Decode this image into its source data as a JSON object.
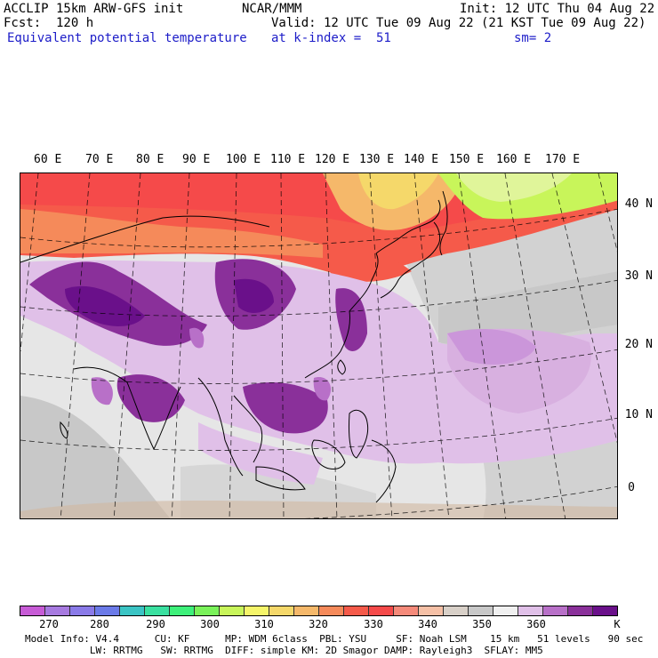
{
  "header": {
    "left": [
      "ACCLIP 15km ARW-GFS init",
      "Fcst:  120 h"
    ],
    "center": "NCAR/MMM",
    "init": "Init: 12 UTC Thu 04 Aug 22",
    "valid": "Valid: 12 UTC Tue 09 Aug 22 (21 KST Tue 09 Aug 22)",
    "field": "Equivalent potential temperature",
    "level": "at k-index =  51",
    "smooth": "sm= 2"
  },
  "longitude_labels": [
    "60 E",
    "70 E",
    "80 E",
    "90 E",
    "100 E",
    "110 E",
    "120 E",
    "130 E",
    "140 E",
    "150 E",
    "160 E",
    "170 E"
  ],
  "latitude_labels": [
    "40 N",
    "30 N",
    "20 N",
    "10 N",
    "0"
  ],
  "colorbar": {
    "colors": [
      "#c75bd6",
      "#a77ae0",
      "#8a7ae8",
      "#6b7ae8",
      "#3bc4c4",
      "#3ae0a0",
      "#3ef07a",
      "#7af25a",
      "#c8f55a",
      "#f5f56a",
      "#f5d86a",
      "#f5b86a",
      "#f58a5a",
      "#f55a4a",
      "#f54a4a",
      "#f58a7a",
      "#f5c0a6",
      "#d8d0c8",
      "#c8c8c8",
      "#f0f0f0",
      "#e0c0e8",
      "#b870c8",
      "#8a309a",
      "#6a108a"
    ],
    "ticks": [
      "270",
      "280",
      "290",
      "300",
      "310",
      "320",
      "330",
      "340",
      "350",
      "360"
    ],
    "unit": "K"
  },
  "model_info": [
    "Model Info: V4.4      CU: KF      MP: WDM 6class  PBL: YSU     SF: Noah LSM    15 km   51 levels   90 sec",
    "           LW: RRTMG   SW: RRTMG  DIFF: simple KM: 2D Smagor DAMP: Rayleigh3  SFLAY: MM5"
  ]
}
